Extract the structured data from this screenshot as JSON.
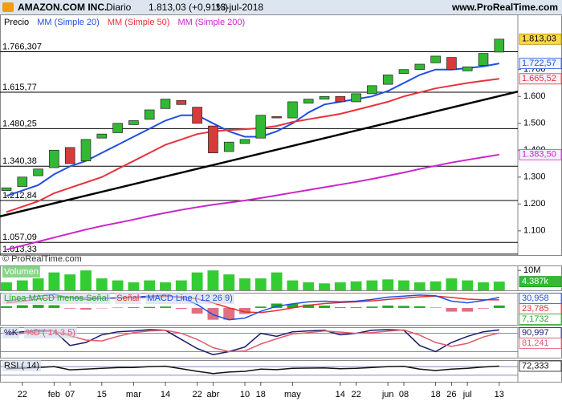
{
  "header": {
    "symbol": "AMAZON.COM INC.",
    "period": "Diario",
    "quote": "1.813,03 (+0,91%)",
    "date": "13-jul-2018",
    "site": "www.ProRealTime.com"
  },
  "chart_data": [
    {
      "type": "candlestick",
      "name": "Precio",
      "up_color": "#33b833",
      "down_color": "#d93a3a",
      "categories": [
        null,
        "22",
        null,
        "feb",
        "07",
        null,
        "15",
        null,
        "mar",
        null,
        "14",
        null,
        "22",
        "abr",
        null,
        "10",
        "18",
        null,
        "may",
        null,
        null,
        "14",
        "22",
        null,
        "jun",
        "08",
        null,
        "18",
        "26",
        "jul",
        null,
        "13"
      ],
      "open": [
        1250,
        1265,
        1305,
        1335,
        1410,
        1360,
        1445,
        1465,
        1495,
        1515,
        1555,
        1585,
        1560,
        1490,
        1395,
        1425,
        1445,
        1525,
        1520,
        1575,
        1590,
        1600,
        1580,
        1610,
        1645,
        1685,
        1700,
        1725,
        1745,
        1695,
        1715,
        1765
      ],
      "close": [
        1260,
        1300,
        1330,
        1400,
        1350,
        1440,
        1460,
        1500,
        1510,
        1550,
        1590,
        1570,
        1500,
        1390,
        1430,
        1440,
        1530,
        1520,
        1580,
        1590,
        1600,
        1580,
        1610,
        1640,
        1680,
        1700,
        1720,
        1750,
        1700,
        1710,
        1760,
        1813.03
      ],
      "last_label": "1.813,03",
      "series": [
        {
          "name": "MM (Simple 20)",
          "color": "#1f4fe0",
          "last_label": "1.722,57",
          "values": [
            1230,
            1250,
            1270,
            1310,
            1340,
            1360,
            1390,
            1420,
            1450,
            1480,
            1510,
            1530,
            1530,
            1500,
            1470,
            1450,
            1450,
            1470,
            1500,
            1540,
            1570,
            1580,
            1590,
            1600,
            1620,
            1650,
            1680,
            1700,
            1700,
            1705,
            1712,
            1722.57
          ]
        },
        {
          "name": "MM (Simple 50)",
          "color": "#e8323c",
          "last_label": "1.665,52",
          "values": [
            1170,
            1190,
            1210,
            1240,
            1260,
            1280,
            1300,
            1330,
            1360,
            1390,
            1420,
            1440,
            1460,
            1470,
            1475,
            1478,
            1482,
            1490,
            1505,
            1515,
            1525,
            1535,
            1550,
            1565,
            1580,
            1600,
            1615,
            1630,
            1640,
            1650,
            1658,
            1665.52
          ]
        },
        {
          "name": "MM (Simple 200)",
          "color": "#cc22cc",
          "last_label": "1.383,50",
          "values": [
            1030,
            1045,
            1060,
            1075,
            1090,
            1105,
            1118,
            1130,
            1142,
            1155,
            1167,
            1178,
            1188,
            1197,
            1205,
            1213,
            1222,
            1232,
            1242,
            1252,
            1262,
            1272,
            1282,
            1293,
            1305,
            1317,
            1330,
            1342,
            1354,
            1364,
            1374,
            1383.5
          ]
        }
      ],
      "ylim": [
        1010,
        1905
      ],
      "yticks": [
        {
          "value": 1100,
          "label": "1.100"
        },
        {
          "value": 1200,
          "label": "1.200"
        },
        {
          "value": 1300,
          "label": "1.300"
        },
        {
          "value": 1400,
          "label": "1.400"
        },
        {
          "value": 1500,
          "label": "1.500"
        },
        {
          "value": 1600,
          "label": "1.600"
        },
        {
          "value": 1700,
          "label": "1.700"
        }
      ],
      "levels": [
        {
          "value": 1766.307,
          "label": "1.766,307"
        },
        {
          "value": 1615.77,
          "label": "1.615,77"
        },
        {
          "value": 1480.25,
          "label": "1.480,25"
        },
        {
          "value": 1340.38,
          "label": "1.340,38"
        },
        {
          "value": 1212.84,
          "label": "1.212,84"
        },
        {
          "value": 1057.09,
          "label": "1.057,09"
        },
        {
          "value": 1013.33,
          "label": "1.013,33"
        }
      ],
      "trendline": {
        "values": [
          1154,
          1618
        ],
        "color": "#000000"
      },
      "copyright": "© ProRealTime.com"
    },
    {
      "type": "bar",
      "title": "Volumen",
      "color": "#33cc33",
      "last_label": "4.387k",
      "values": [
        4,
        5,
        6,
        9,
        8,
        10,
        6,
        5,
        4,
        5,
        4,
        5,
        9,
        10,
        8,
        6,
        6,
        9,
        5,
        4,
        3.5,
        4,
        4.5,
        5,
        5.5,
        5,
        4,
        4.5,
        6,
        5,
        4,
        4.387
      ],
      "ylim": [
        0,
        12.5
      ],
      "yticks": [
        {
          "value": 10,
          "label": "10M"
        }
      ]
    },
    {
      "type": "line",
      "series": [
        {
          "name": "Línea MACD menos Señal",
          "color": "#22aa22",
          "style": "bar",
          "last_label": "7,1732",
          "values": [
            5,
            8,
            9,
            8,
            -2,
            -5,
            -1,
            1,
            2,
            3,
            4,
            -3,
            -17,
            -35,
            -35,
            -18,
            4,
            13,
            12,
            10,
            7,
            2,
            2,
            4,
            7,
            6,
            5,
            1,
            -11,
            -11,
            -2,
            7.1732
          ]
        },
        {
          "name": "Señal",
          "color": "#e03030",
          "last_label": "23,785",
          "values": [
            15,
            20,
            26,
            32,
            32,
            30,
            29,
            29,
            30,
            32,
            34,
            33,
            27,
            15,
            0,
            -12,
            -14,
            -8,
            0,
            8,
            13,
            16,
            18,
            21,
            25,
            29,
            33,
            35,
            31,
            26,
            24,
            23.785
          ]
        },
        {
          "name": "MACD Line ( 12 26 9)",
          "color": "#1f4fe0",
          "last_label": "30,958",
          "values": [
            20,
            28,
            35,
            40,
            30,
            25,
            28,
            30,
            32,
            35,
            38,
            30,
            10,
            -20,
            -35,
            -30,
            -10,
            5,
            12,
            18,
            20,
            18,
            20,
            25,
            32,
            35,
            38,
            36,
            20,
            15,
            22,
            30.958
          ]
        }
      ],
      "ylim": [
        -50,
        45
      ]
    },
    {
      "type": "line",
      "series": [
        {
          "name": "%K",
          "color": "#1a1a6a",
          "last_label": "90,997",
          "values": [
            80,
            85,
            90,
            88,
            40,
            50,
            75,
            85,
            88,
            92,
            90,
            60,
            30,
            10,
            20,
            35,
            80,
            70,
            85,
            88,
            90,
            75,
            80,
            90,
            92,
            90,
            40,
            20,
            50,
            70,
            85,
            90.997
          ]
        },
        {
          "name": "%D ( 14 3 5)",
          "color": "#e05a6a",
          "last_label": "81,241",
          "values": [
            75,
            80,
            85,
            88,
            72,
            58,
            55,
            70,
            82,
            88,
            90,
            80,
            60,
            33,
            20,
            22,
            45,
            62,
            78,
            82,
            88,
            84,
            80,
            82,
            87,
            91,
            74,
            50,
            37,
            47,
            68,
            81.241
          ]
        }
      ],
      "ylim": [
        0,
        100
      ],
      "hlines": [
        80,
        20
      ]
    },
    {
      "type": "line",
      "series": [
        {
          "name": "RSI ( 14)",
          "color": "#111111",
          "last_label": "72,333",
          "values": [
            60,
            63,
            66,
            70,
            55,
            58,
            62,
            65,
            66,
            70,
            72,
            60,
            48,
            38,
            45,
            48,
            58,
            56,
            62,
            63,
            64,
            60,
            62,
            66,
            70,
            71,
            58,
            52,
            58,
            62,
            68,
            72.333
          ]
        }
      ],
      "ylim": [
        0,
        100
      ],
      "hlines": [
        70,
        30
      ]
    }
  ]
}
